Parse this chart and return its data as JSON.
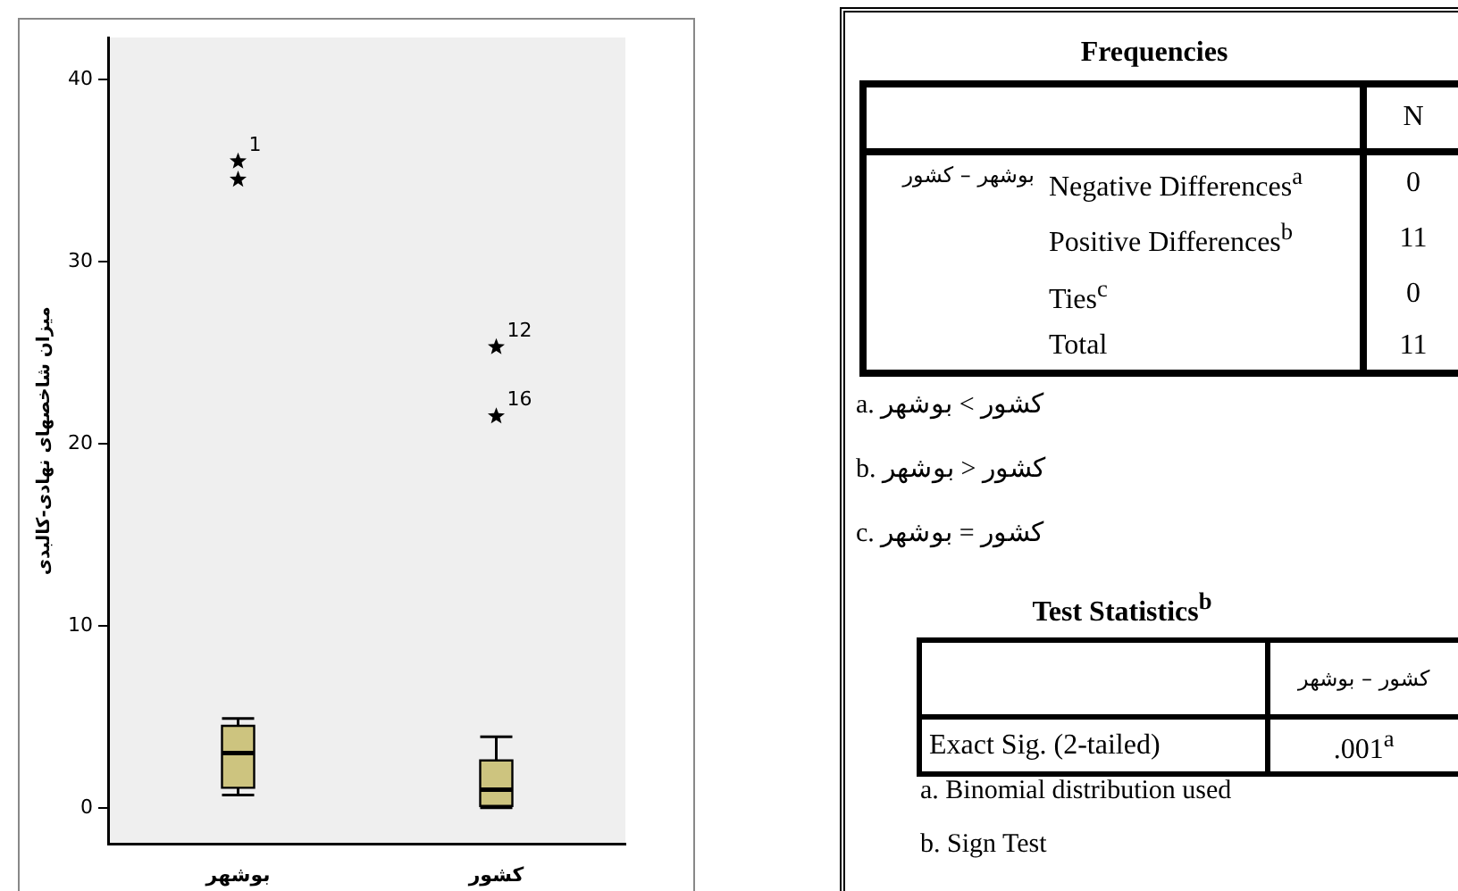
{
  "chart_data": [
    {
      "type": "box",
      "ylabel": "میزان شاخصهای نهادی-کالبدی",
      "categories": [
        "بوشهر",
        "کشور"
      ],
      "color": "#cdc47f",
      "boxes": [
        {
          "low": 0.7,
          "q1": 1.1,
          "median": 3.0,
          "q3": 4.5,
          "high": 4.9
        },
        {
          "low": 0.0,
          "q1": 0.1,
          "median": 1.0,
          "q3": 2.6,
          "high": 3.9
        }
      ],
      "series": [
        {
          "type": "scatter",
          "color": "#000000",
          "x": [
            "بوشهر",
            "بوشهر",
            "کشور",
            "کشور"
          ],
          "values": [
            35.5,
            34.5,
            25.3,
            21.5
          ]
        }
      ],
      "ylim": [
        -2,
        42.3
      ],
      "yticks": [
        0,
        10,
        20,
        30,
        40
      ],
      "grid": false,
      "marker": "star",
      "annotations": [
        {
          "text": "1",
          "x": "بوشهر",
          "y": 35.5
        },
        {
          "text": "12",
          "x": "کشور",
          "y": 25.3
        },
        {
          "text": "16",
          "x": "کشور",
          "y": 21.5
        }
      ]
    },
    {
      "type": "other",
      "title": "Frequencies",
      "xlabel": "N",
      "ylabel": "بوشهر – کشور",
      "categories": [
        "Negative Differences$^{a}$",
        "Positive Differences$^{b}$",
        "Ties$^{c}$",
        "Total"
      ],
      "values": [
        0,
        11,
        0,
        11
      ],
      "data_labels": true,
      "annotations": [
        "a. کشور > بوشهر",
        "b. کشور < بوشهر",
        "c. کشور = بوشهر"
      ]
    },
    {
      "type": "other",
      "title": "Test Statistics$^{b}$",
      "xlabel": "کشور – بوشهر",
      "categories": [
        "Exact Sig. (2-tailed)"
      ],
      "value_labels": [
        ".001$^{a}$"
      ],
      "annotations": [
        "a. Binomial distribution used",
        "b. Sign Test"
      ]
    }
  ]
}
